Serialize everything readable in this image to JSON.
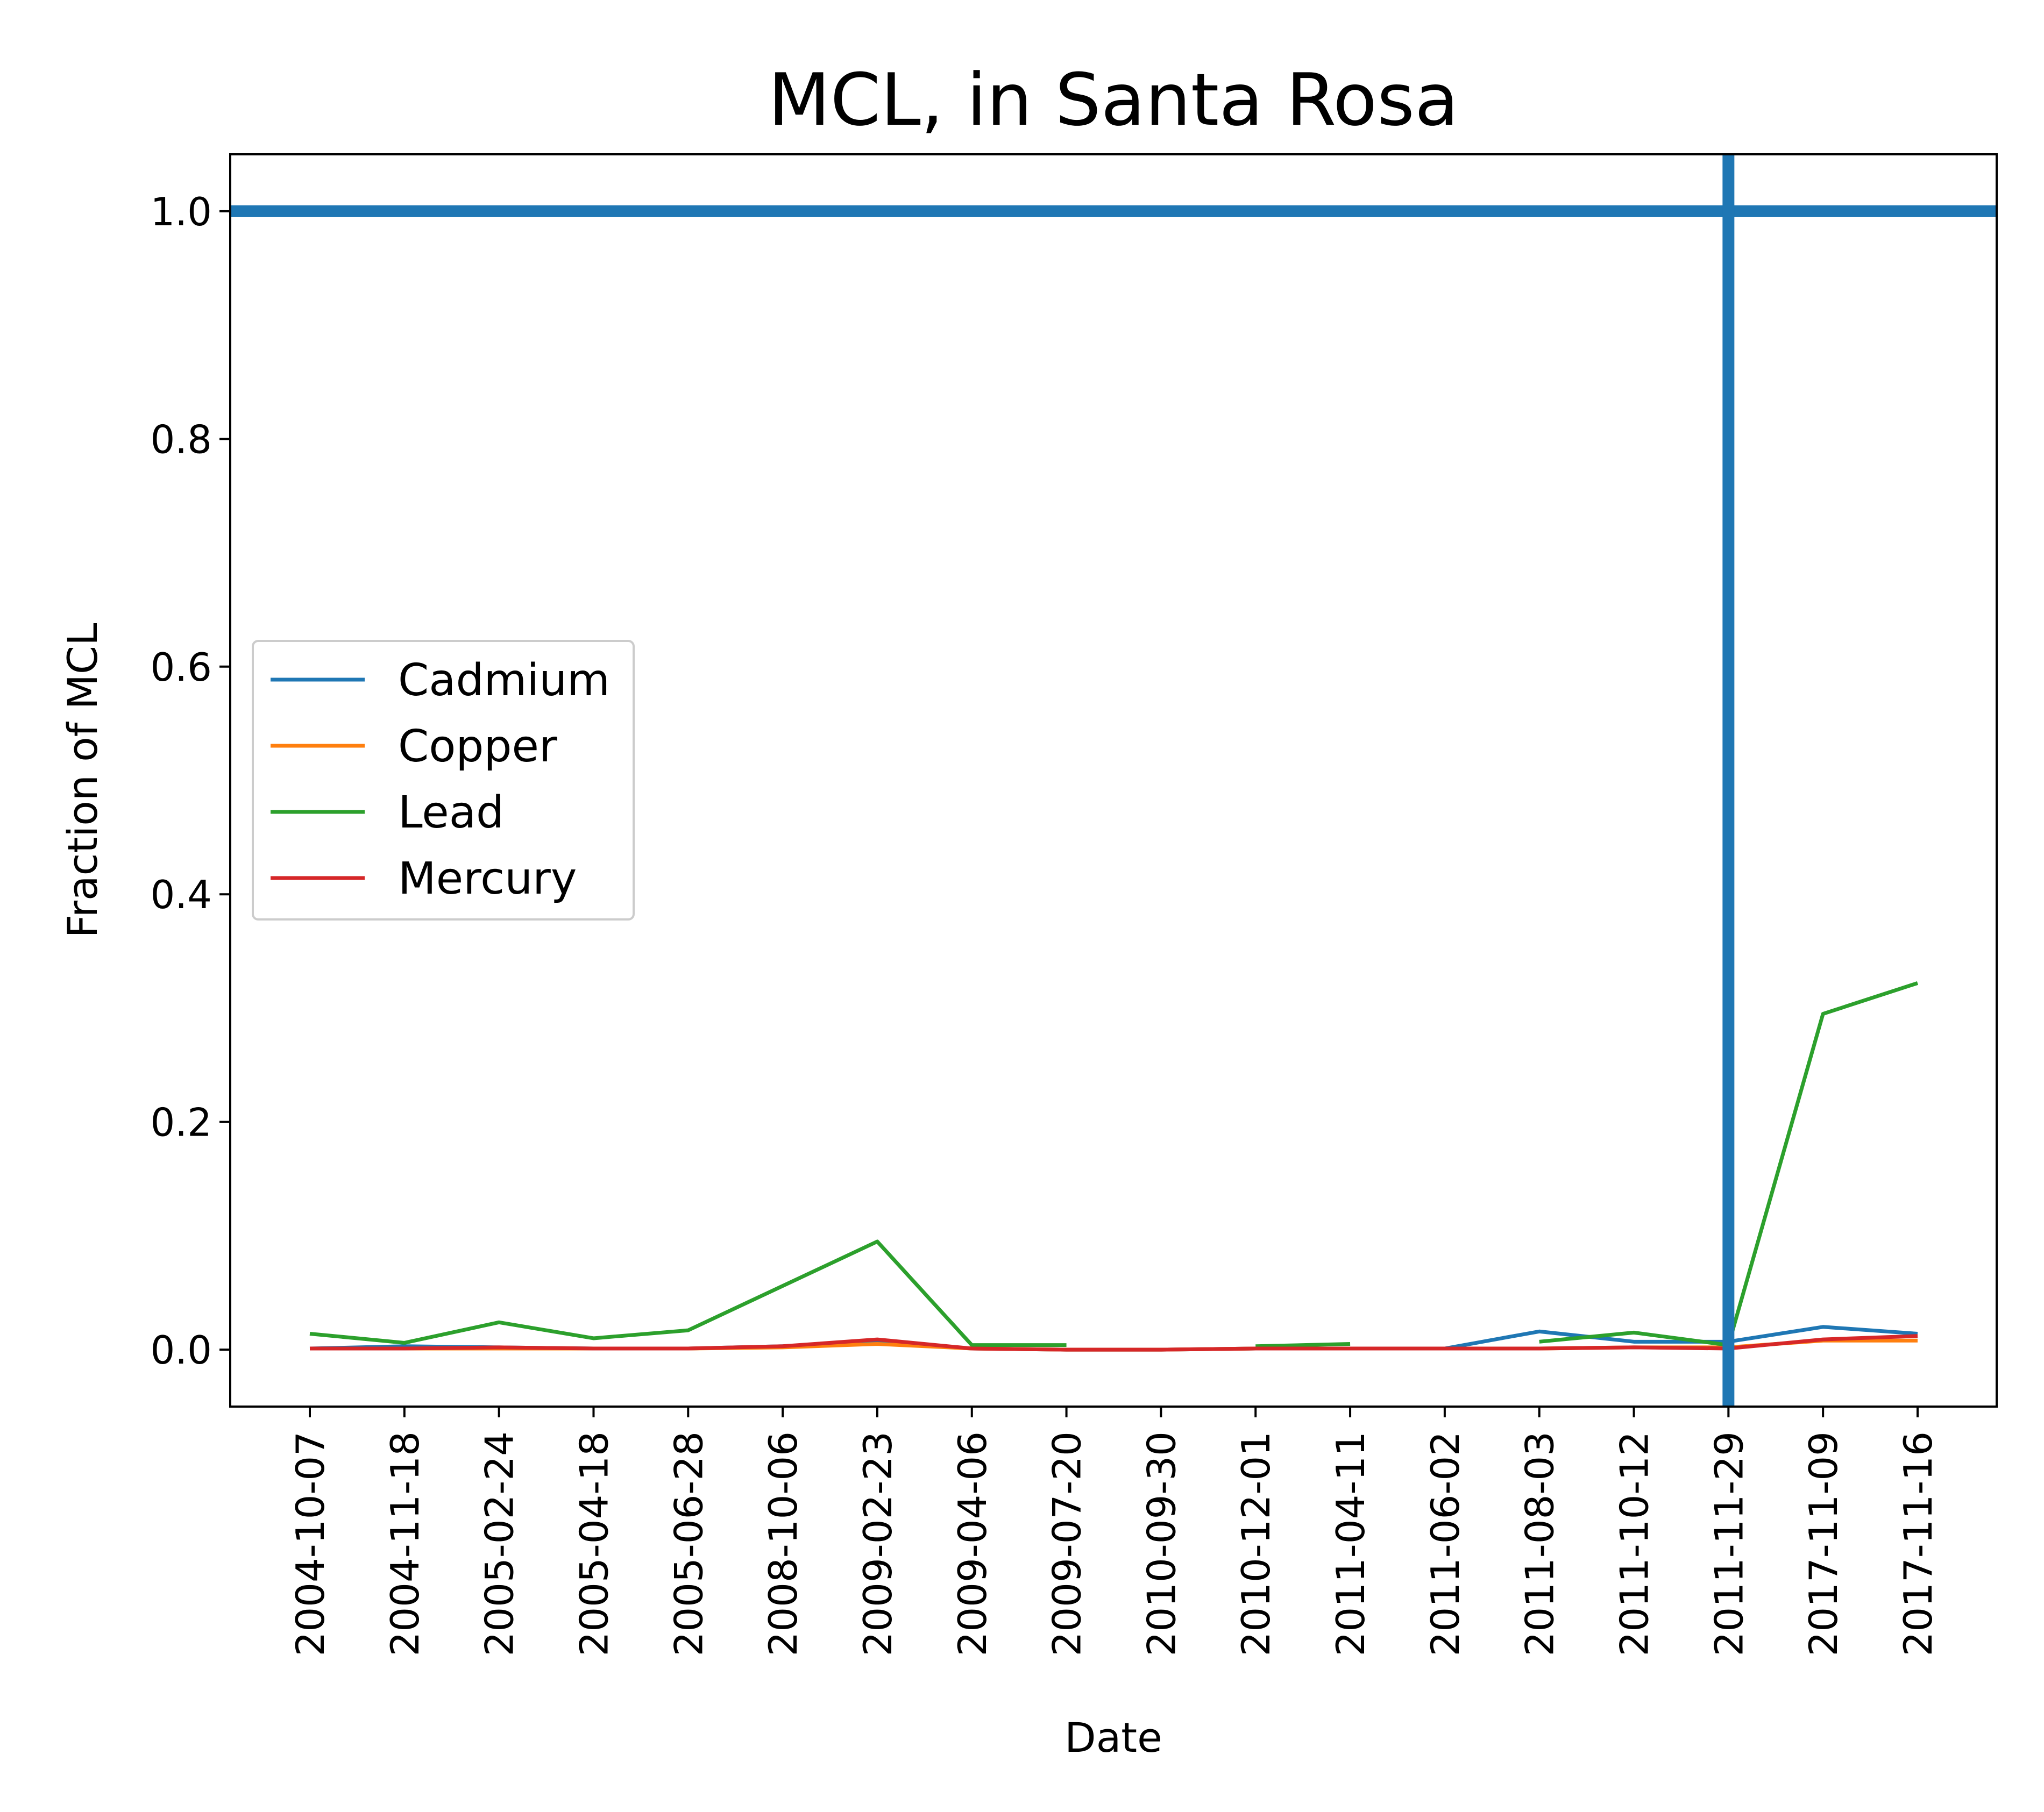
{
  "chart_data": {
    "type": "line",
    "title": "MCL, in Santa Rosa",
    "xlabel": "Date",
    "ylabel": "Fraction of MCL",
    "ylim": [
      -0.05,
      1.05
    ],
    "yticks": [
      "0.0",
      "0.2",
      "0.4",
      "0.6",
      "0.8",
      "1.0"
    ],
    "ytick_values": [
      0.0,
      0.2,
      0.4,
      0.6,
      0.8,
      1.0
    ],
    "categories": [
      "2004-10-07",
      "2004-11-18",
      "2005-02-24",
      "2005-04-18",
      "2005-06-28",
      "2008-10-06",
      "2009-02-23",
      "2009-04-06",
      "2009-07-20",
      "2010-09-30",
      "2010-12-01",
      "2011-04-11",
      "2011-06-02",
      "2011-08-03",
      "2011-10-12",
      "2011-11-29",
      "2017-11-09",
      "2017-11-16"
    ],
    "grid": false,
    "legend_position": "center-left",
    "series": [
      {
        "name": "Cadmium",
        "color": "#1f77b4",
        "values": [
          0.001,
          0.003,
          0.002,
          0.001,
          0.001,
          0.003,
          0.006,
          0.001,
          0.0,
          0.0,
          0.001,
          0.001,
          0.001,
          0.016,
          0.007,
          0.007,
          0.02,
          0.014
        ]
      },
      {
        "name": "Copper",
        "color": "#ff7f0e",
        "values": [
          0.001,
          0.001,
          0.001,
          0.001,
          0.001,
          0.002,
          0.005,
          0.001,
          0.0,
          0.0,
          0.001,
          0.001,
          0.001,
          0.001,
          0.002,
          0.002,
          0.008,
          0.008
        ]
      },
      {
        "name": "Lead",
        "color": "#2ca02c",
        "values": [
          0.014,
          0.006,
          0.024,
          0.01,
          0.017,
          0.056,
          0.095,
          0.004,
          0.004,
          null,
          0.003,
          0.005,
          null,
          0.007,
          0.015,
          0.004,
          0.295,
          0.322
        ]
      },
      {
        "name": "Mercury",
        "color": "#d62728",
        "values": [
          0.001,
          0.001,
          0.002,
          0.001,
          0.001,
          0.003,
          0.009,
          0.001,
          0.0,
          0.0,
          0.001,
          0.001,
          0.001,
          0.001,
          0.002,
          0.001,
          0.009,
          0.012
        ]
      }
    ],
    "reference_lines": {
      "color": "#1f77b4",
      "horizontal_y": 1.0,
      "vertical_x": "2011-11-29"
    }
  }
}
